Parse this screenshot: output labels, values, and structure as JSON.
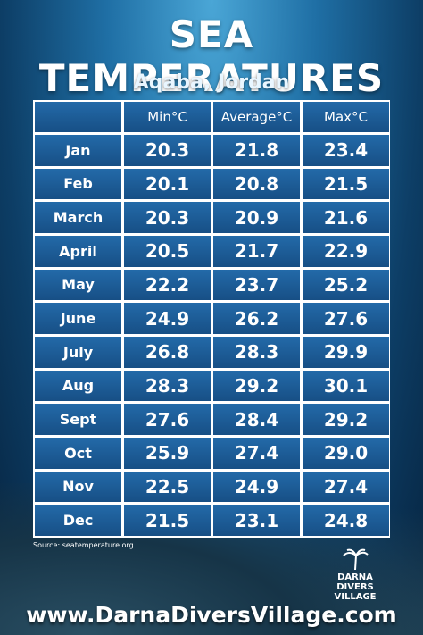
{
  "header": {
    "title": "SEA TEMPERATURES",
    "subtitle": "Aqaba, Jordan"
  },
  "table": {
    "columns": [
      "Min°C",
      "Average°C",
      "Max°C"
    ],
    "rows": [
      [
        "Jan",
        "20.3",
        "21.8",
        "23.4"
      ],
      [
        "Feb",
        "20.1",
        "20.8",
        "21.5"
      ],
      [
        "March",
        "20.3",
        "20.9",
        "21.6"
      ],
      [
        "April",
        "20.5",
        "21.7",
        "22.9"
      ],
      [
        "May",
        "22.2",
        "23.7",
        "25.2"
      ],
      [
        "June",
        "24.9",
        "26.2",
        "27.6"
      ],
      [
        "July",
        "26.8",
        "28.3",
        "29.9"
      ],
      [
        "Aug",
        "28.3",
        "29.2",
        "30.1"
      ],
      [
        "Sept",
        "27.6",
        "28.4",
        "29.2"
      ],
      [
        "Oct",
        "25.9",
        "27.4",
        "29.0"
      ],
      [
        "Nov",
        "22.5",
        "24.9",
        "27.4"
      ],
      [
        "Dec",
        "21.5",
        "23.1",
        "24.8"
      ]
    ]
  },
  "footer": {
    "source": "Source: seatemperature.org",
    "logo": "DARNA DIVERS VILLAGE",
    "website": "www.DarnaDiversVillage.com"
  }
}
